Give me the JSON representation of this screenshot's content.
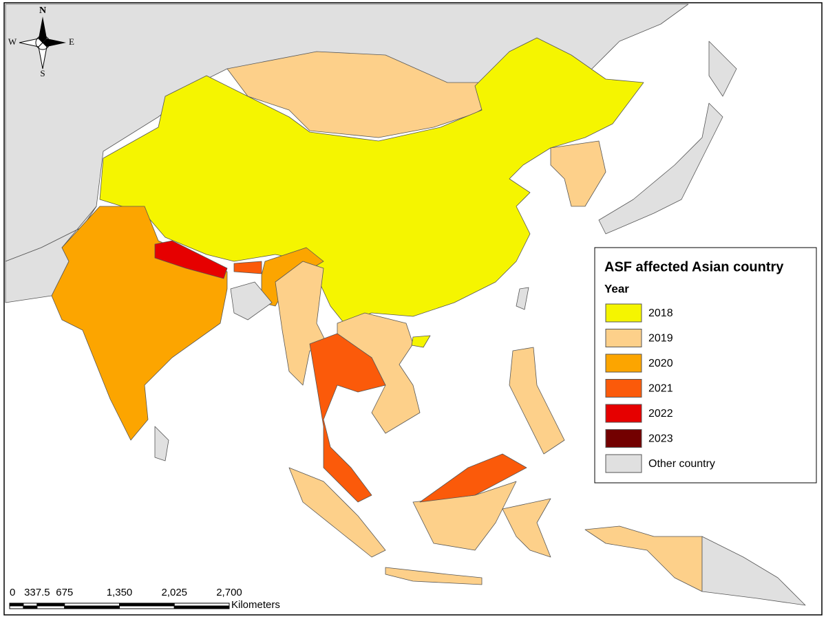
{
  "compass": {
    "north": "N",
    "south": "S",
    "west": "W",
    "east": "E"
  },
  "legend": {
    "title": "ASF affected Asian country",
    "subtitle": "Year",
    "entries": [
      {
        "label": "2018",
        "color": "#f5f500"
      },
      {
        "label": "2019",
        "color": "#fdd08a"
      },
      {
        "label": "2020",
        "color": "#fca500"
      },
      {
        "label": "2021",
        "color": "#fb5a0a"
      },
      {
        "label": "2022",
        "color": "#e60000"
      },
      {
        "label": "2023",
        "color": "#730000"
      },
      {
        "label": "Other country",
        "color": "#e0e0e0"
      }
    ]
  },
  "scale_bar": {
    "unit": "Kilometers",
    "ticks": [
      0,
      337.5,
      675,
      {
        "value": 1350,
        "label": "1,350"
      },
      {
        "value": 2025,
        "label": "2,025"
      },
      {
        "value": 2700,
        "label": "2,700"
      }
    ]
  }
}
